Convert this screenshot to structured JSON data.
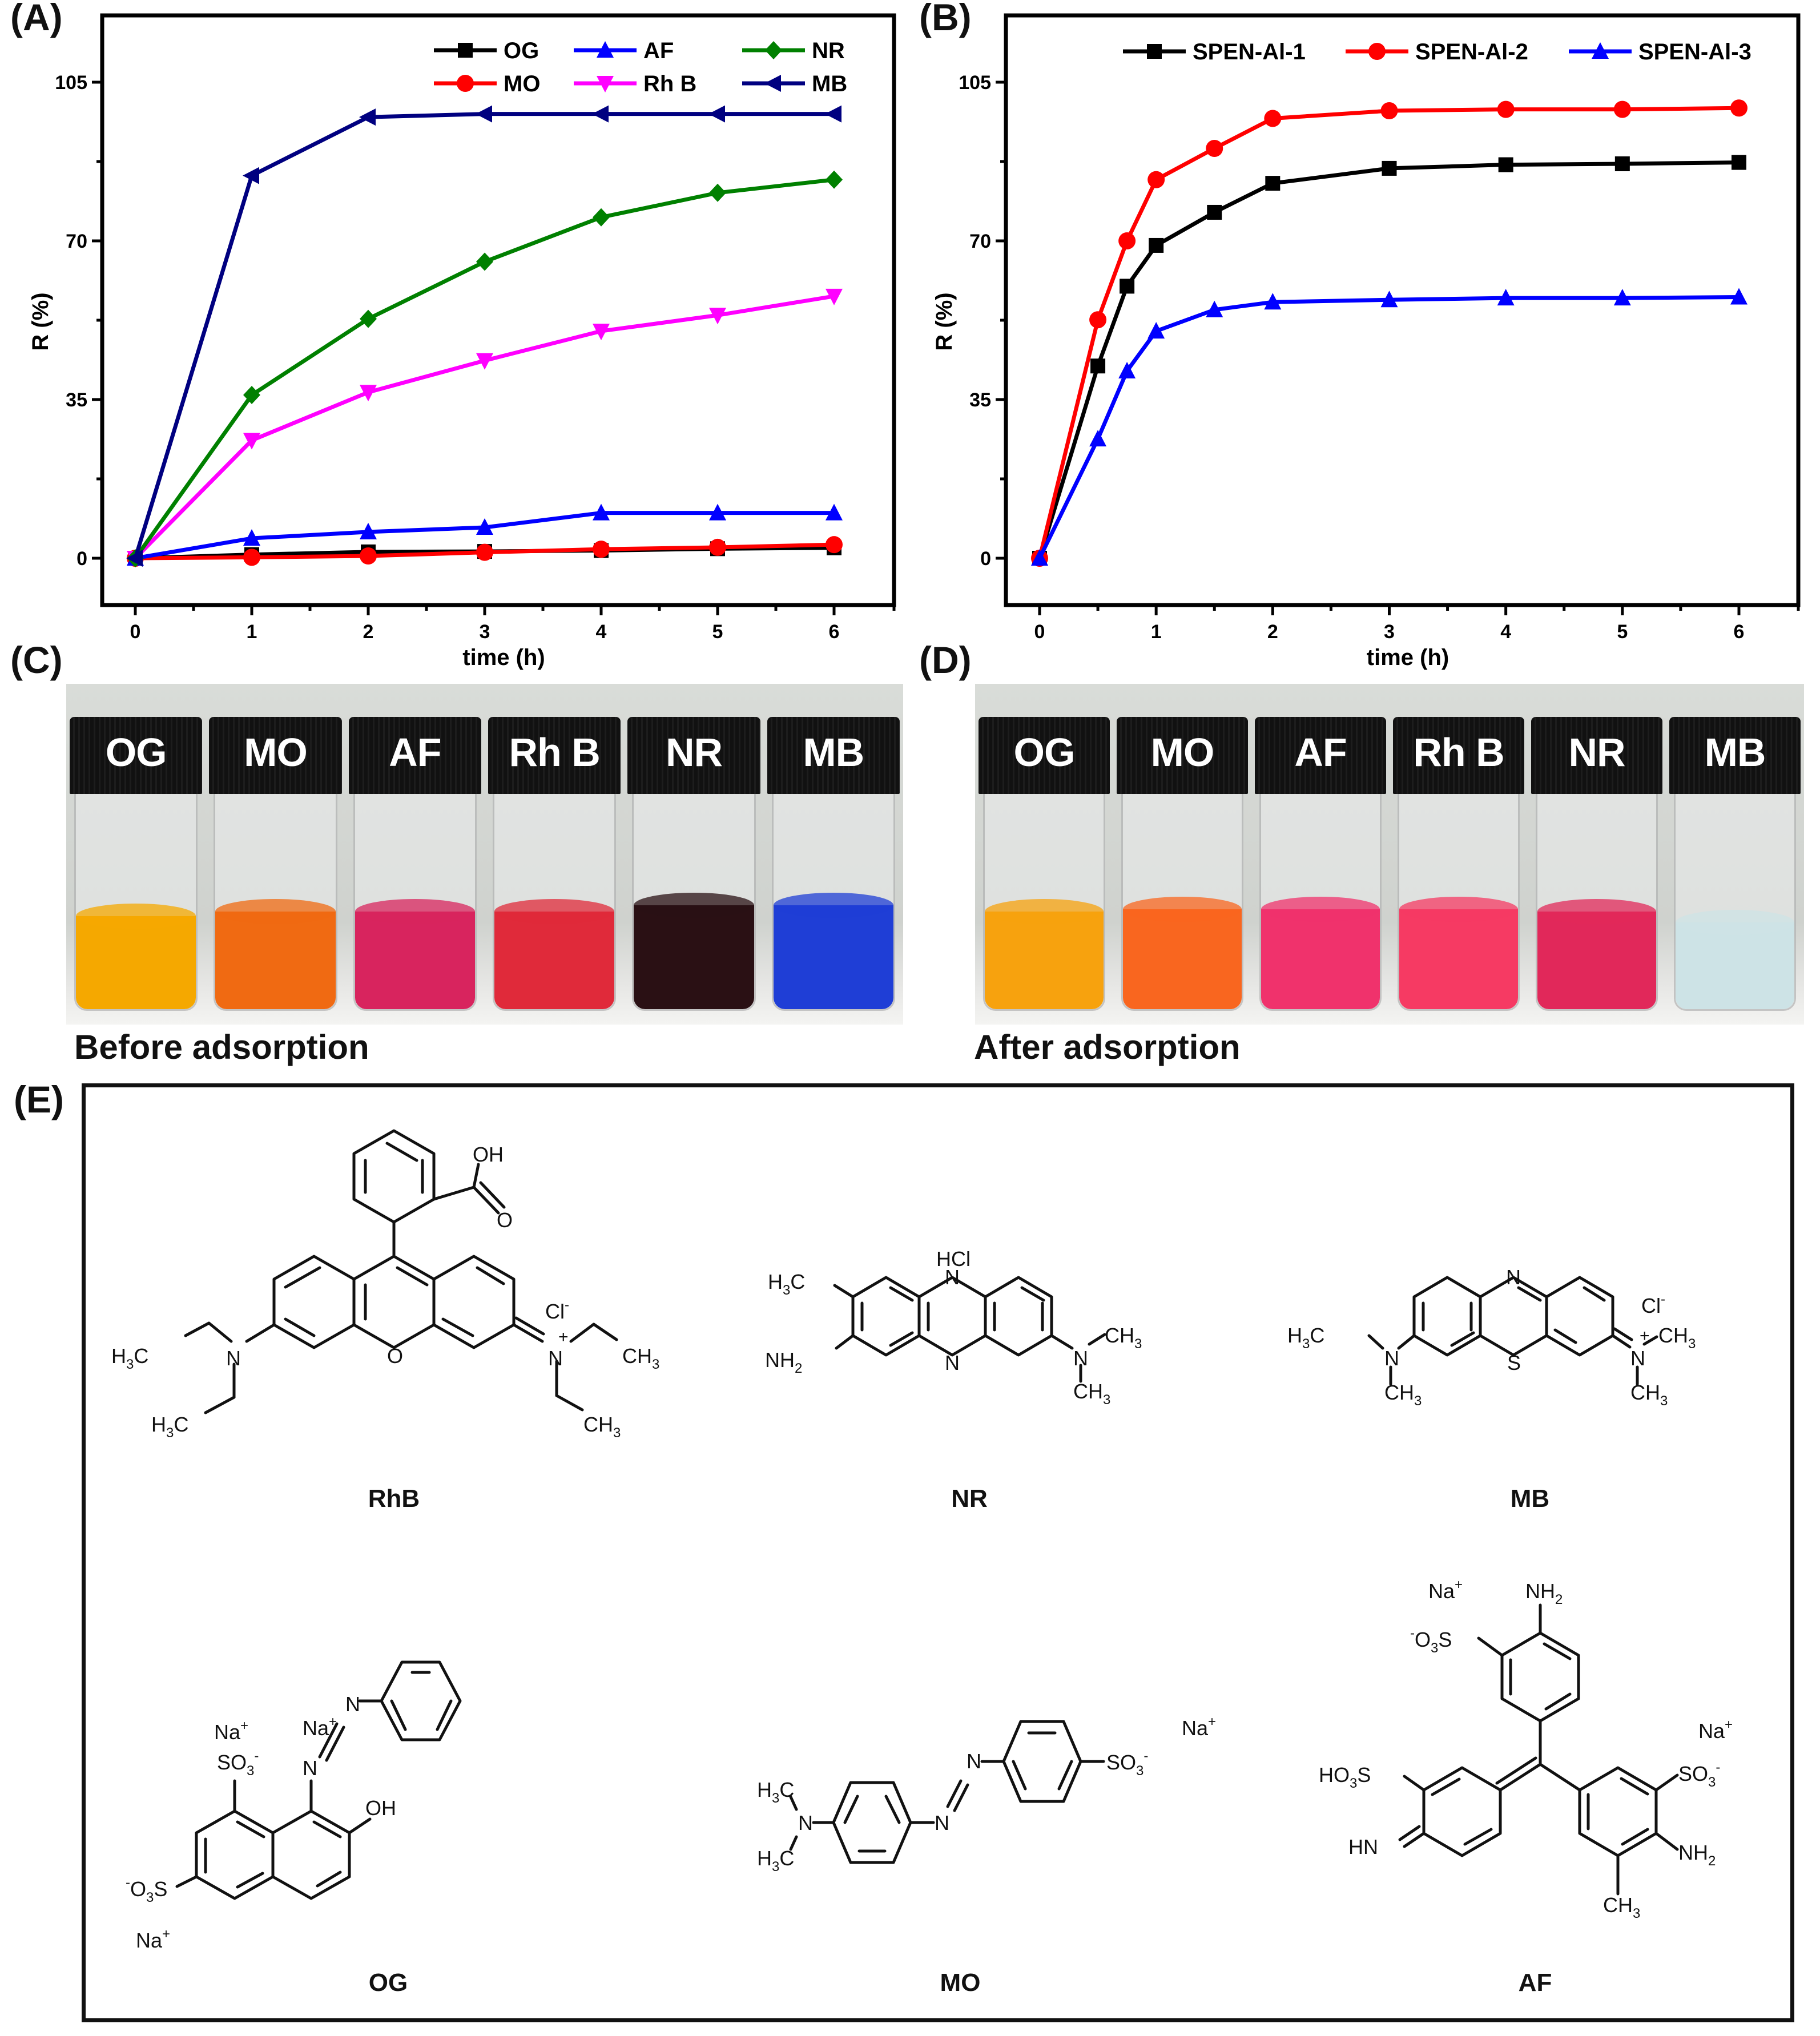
{
  "panels": {
    "A": {
      "label": "(A)"
    },
    "B": {
      "label": "(B)"
    },
    "C": {
      "label": "(C)",
      "caption": "Before adsorption"
    },
    "D": {
      "label": "(D)",
      "caption": "After adsorption"
    },
    "E": {
      "label": "(E)"
    }
  },
  "photos": {
    "before": {
      "vials": [
        {
          "label": "OG",
          "color": "#f5a800",
          "level": 0.43
        },
        {
          "label": "MO",
          "color": "#f06a12",
          "level": 0.45
        },
        {
          "label": "AF",
          "color": "#d8245e",
          "level": 0.45
        },
        {
          "label": "Rh B",
          "color": "#e02a3a",
          "level": 0.45
        },
        {
          "label": "NR",
          "color": "#2a1014",
          "level": 0.48
        },
        {
          "label": "MB",
          "color": "#1f3ed6",
          "level": 0.48
        }
      ]
    },
    "after": {
      "vials": [
        {
          "label": "OG",
          "color": "#f7a20e",
          "level": 0.45
        },
        {
          "label": "MO",
          "color": "#f9661f",
          "level": 0.46
        },
        {
          "label": "AF",
          "color": "#f0326c",
          "level": 0.46
        },
        {
          "label": "Rh B",
          "color": "#f63a63",
          "level": 0.46
        },
        {
          "label": "NR",
          "color": "#e1285a",
          "level": 0.45
        },
        {
          "label": "MB",
          "color": "#cde3e6",
          "level": 0.4
        }
      ]
    }
  },
  "molecules": [
    {
      "name": "RhB"
    },
    {
      "name": "NR"
    },
    {
      "name": "MB"
    },
    {
      "name": "OG"
    },
    {
      "name": "MO"
    },
    {
      "name": "AF"
    }
  ],
  "chart_data": [
    {
      "id": "A",
      "type": "line",
      "title": "",
      "xlabel": "time (h)",
      "ylabel": "R (%)",
      "xlim": [
        0,
        6
      ],
      "ylim": [
        -12,
        123
      ],
      "xticks": [
        0,
        1,
        2,
        3,
        4,
        5,
        6
      ],
      "yticks": [
        0,
        35,
        70,
        105
      ],
      "yminor": [
        17.5,
        52.5,
        87.5
      ],
      "grid": false,
      "legend_position": "upper right, 3 columns",
      "x": [
        0,
        1,
        2,
        3,
        4,
        5,
        6
      ],
      "series": [
        {
          "name": "OG",
          "color": "#000000",
          "marker": "square",
          "values": [
            0,
            0.8,
            1.4,
            1.5,
            1.7,
            2.1,
            2.3
          ]
        },
        {
          "name": "MO",
          "color": "#ff0000",
          "marker": "circle",
          "values": [
            0,
            0.2,
            0.5,
            1.3,
            2.0,
            2.4,
            3.0
          ]
        },
        {
          "name": "AF",
          "color": "#0000ff",
          "marker": "triangle-up",
          "values": [
            0,
            4.4,
            5.8,
            6.8,
            10.0,
            10.0,
            10.0
          ]
        },
        {
          "name": "Rh B",
          "color": "#ff00ff",
          "marker": "triangle-down",
          "values": [
            0,
            26.0,
            36.6,
            43.6,
            50.1,
            53.6,
            57.8
          ]
        },
        {
          "name": "NR",
          "color": "#008000",
          "marker": "diamond",
          "values": [
            0,
            36.0,
            52.8,
            65.4,
            75.2,
            80.6,
            83.5
          ]
        },
        {
          "name": "MB",
          "color": "#000080",
          "marker": "triangle-left",
          "values": [
            0,
            84.4,
            97.3,
            98.0,
            98.0,
            98.0,
            98.0
          ]
        }
      ]
    },
    {
      "id": "B",
      "type": "line",
      "title": "",
      "xlabel": "time (h)",
      "ylabel": "R (%)",
      "xlim": [
        0,
        6
      ],
      "ylim": [
        -12,
        123
      ],
      "xticks": [
        0,
        1,
        2,
        3,
        4,
        5,
        6
      ],
      "yticks": [
        0,
        35,
        70,
        105
      ],
      "yminor": [
        17.5,
        52.5,
        87.5
      ],
      "grid": false,
      "legend_position": "upper right, 1 row",
      "x": [
        0,
        0.5,
        0.75,
        1,
        1.5,
        2,
        3,
        4,
        5,
        6
      ],
      "series": [
        {
          "name": "SPEN-Al-1",
          "color": "#000000",
          "marker": "square",
          "values": [
            0,
            42.4,
            60.0,
            69.0,
            76.3,
            82.7,
            86.0,
            86.8,
            87.0,
            87.3
          ]
        },
        {
          "name": "SPEN-Al-2",
          "color": "#ff0000",
          "marker": "circle",
          "values": [
            0,
            52.6,
            70.0,
            83.5,
            90.4,
            97.0,
            98.7,
            99.0,
            99.0,
            99.3
          ]
        },
        {
          "name": "SPEN-Al-3",
          "color": "#0000ff",
          "marker": "triangle-up",
          "values": [
            0,
            26.3,
            41.3,
            50.1,
            54.8,
            56.5,
            57.0,
            57.4,
            57.4,
            57.6
          ]
        }
      ]
    }
  ]
}
